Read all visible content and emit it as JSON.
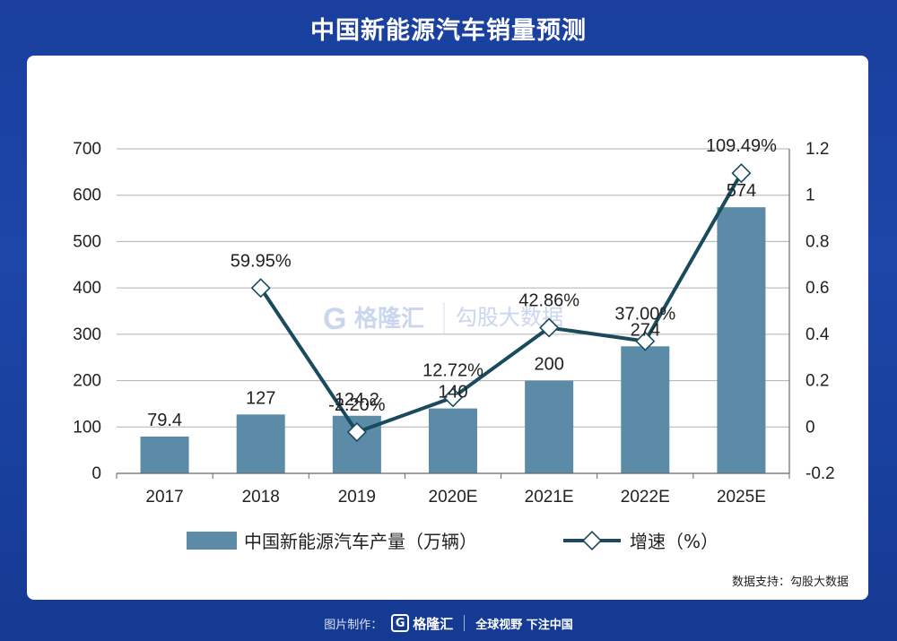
{
  "header": {
    "title": "中国新能源汽车销量预测"
  },
  "source_note": "数据支持：勾股大数据",
  "footer": {
    "credit_label": "图片制作：",
    "logo_letter": "G",
    "brand": "格隆汇",
    "slogan": "全球视野 下注中国"
  },
  "watermark": {
    "brand_a": "格隆汇",
    "brand_b": "勾股大数据"
  },
  "colors": {
    "bar": "#5b8ba6",
    "line": "#1a4a5e",
    "grid": "#b0b0b0"
  },
  "chart_data": {
    "type": "bar",
    "categories": [
      "2017",
      "2018",
      "2019",
      "2020E",
      "2021E",
      "2022E",
      "2025E"
    ],
    "series": [
      {
        "name": "中国新能源汽车产量（万辆）",
        "type": "bar",
        "axis": "left",
        "values": [
          79.4,
          127,
          124.2,
          140,
          200,
          274,
          574
        ],
        "labels": [
          "79.4",
          "127",
          "124.2",
          "140",
          "200",
          "274",
          "574"
        ]
      },
      {
        "name": "增速（%）",
        "type": "line",
        "axis": "right",
        "values": [
          null,
          0.5995,
          -0.022,
          0.1272,
          0.4286,
          0.37,
          1.0949
        ],
        "labels": [
          "",
          "59.95%",
          "-2.20%",
          "12.72%",
          "42.86%",
          "37.00%",
          "109.49%"
        ]
      }
    ],
    "y_left": {
      "min": 0,
      "max": 700,
      "ticks": [
        "0",
        "100",
        "200",
        "300",
        "400",
        "500",
        "600",
        "700"
      ]
    },
    "y_right": {
      "min": -0.2,
      "max": 1.2,
      "ticks": [
        "-0.2",
        "0",
        "0.2",
        "0.4",
        "0.6",
        "0.8",
        "1",
        "1.2"
      ]
    },
    "grid": true,
    "legend_position": "bottom"
  }
}
